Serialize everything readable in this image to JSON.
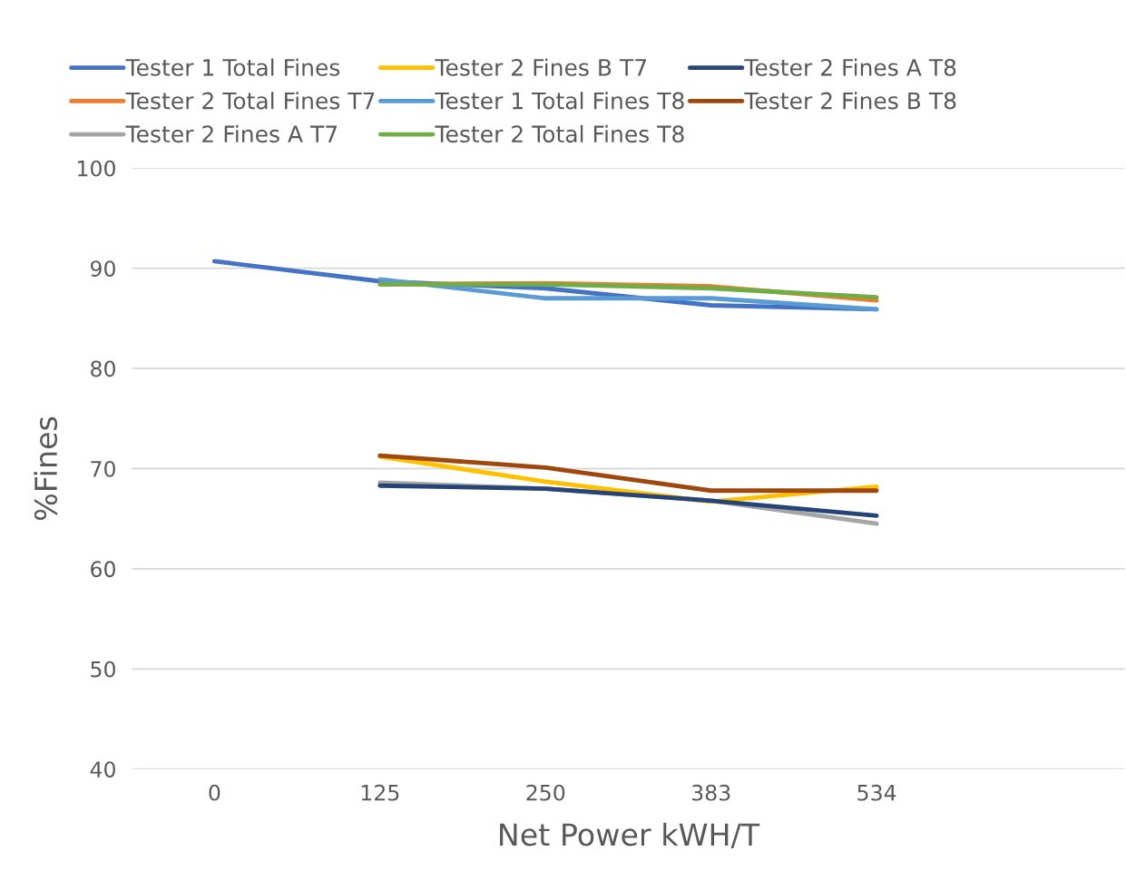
{
  "chart_data": {
    "type": "line",
    "xlabel": "Net Power kWH/T",
    "ylabel": "%Fines",
    "categories": [
      "0",
      "125",
      "250",
      "383",
      "534",
      null
    ],
    "series": [
      {
        "name": "Tester 1 Total Fines",
        "color": "#4472c4",
        "values": [
          90.7,
          88.7,
          88.0,
          86.3,
          85.9,
          null
        ]
      },
      {
        "name": "Tester 2 Total Fines T7",
        "color": "#ed7d31",
        "values": [
          null,
          88.4,
          88.5,
          88.2,
          86.8,
          null
        ]
      },
      {
        "name": "Tester 2 Fines A T7",
        "color": "#a5a5a5",
        "values": [
          null,
          68.6,
          68.0,
          66.8,
          64.5,
          null
        ]
      },
      {
        "name": "Tester 2 Fines B T7",
        "color": "#ffc000",
        "values": [
          null,
          71.2,
          68.7,
          66.7,
          68.2,
          null
        ]
      },
      {
        "name": "Tester 1 Total Fines T8",
        "color": "#5b9bd5",
        "values": [
          null,
          88.9,
          87.0,
          87.0,
          85.9,
          null
        ]
      },
      {
        "name": "Tester 2 Total Fines T8",
        "color": "#70ad47",
        "values": [
          null,
          88.4,
          88.4,
          88.0,
          87.1,
          null
        ]
      },
      {
        "name": "Tester 2 Fines A T8",
        "color": "#264478",
        "values": [
          null,
          68.3,
          68.0,
          66.8,
          65.3,
          null
        ]
      },
      {
        "name": "Tester 2 Fines B T8",
        "color": "#9e480e",
        "values": [
          null,
          71.3,
          70.1,
          67.8,
          67.8,
          null
        ]
      }
    ],
    "ylim": [
      40,
      100
    ],
    "yticks": [
      40,
      50,
      60,
      70,
      80,
      90,
      100
    ],
    "grid": "y",
    "legend": "top",
    "marker": "none",
    "line_style": "solid"
  }
}
